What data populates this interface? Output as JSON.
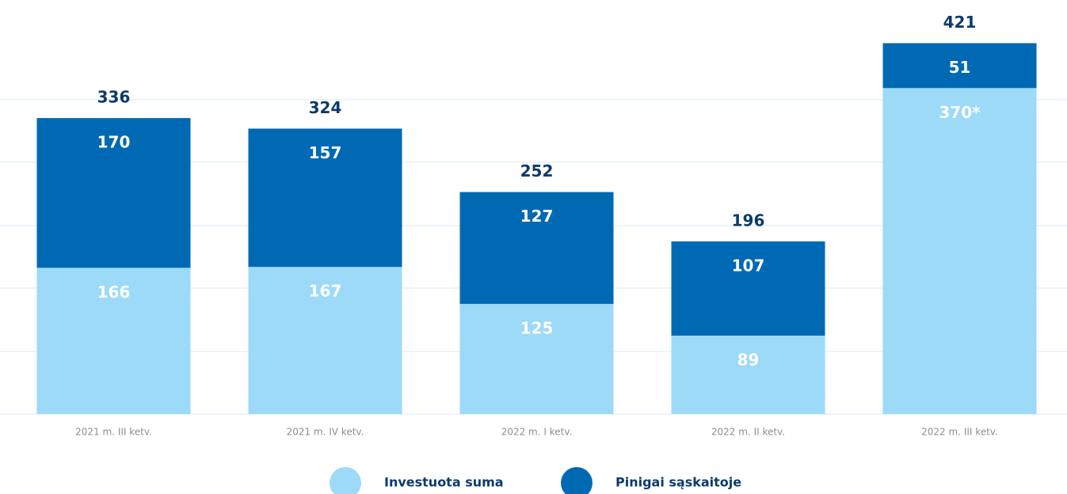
{
  "chart_data": {
    "type": "stacked-bar",
    "categories": [
      "2021 m. III ketv.",
      "2021 m. IV ketv.",
      "2022 m. I ketv.",
      "2022 m. II ketv.",
      "2022 m. III ketv."
    ],
    "series": [
      {
        "name": "Investuota suma",
        "color": "#9cdaf7",
        "values": [
          166,
          167,
          125,
          89,
          370
        ],
        "value_labels": [
          "166",
          "167",
          "125",
          "89",
          "370*"
        ]
      },
      {
        "name": "Pinigai sąskaitoje",
        "color": "#0069b4",
        "values": [
          170,
          157,
          127,
          107,
          51
        ]
      }
    ],
    "totals": [
      336,
      324,
      252,
      196,
      421
    ],
    "ylim": [
      0,
      470
    ],
    "yticks": [
      0,
      71,
      143,
      214,
      286,
      357
    ],
    "grid": true
  }
}
